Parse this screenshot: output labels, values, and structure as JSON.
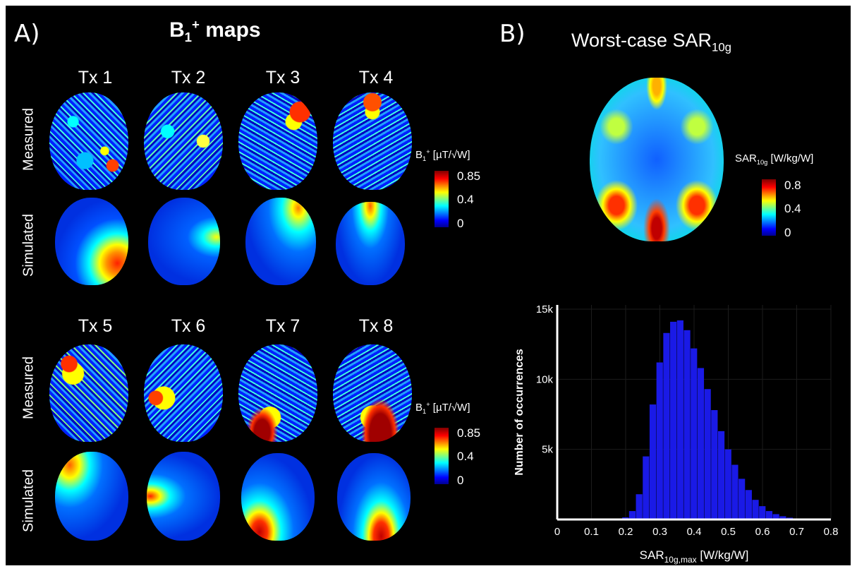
{
  "panel_a": {
    "label": "A)",
    "title_main": "B",
    "title_sub": "1",
    "title_sup": "+",
    "title_rest": " maps",
    "tx_top": [
      "Tx 1",
      "Tx 2",
      "Tx 3",
      "Tx 4"
    ],
    "tx_bottom": [
      "Tx 5",
      "Tx 6",
      "Tx 7",
      "Tx 8"
    ],
    "row_measured": "Measured",
    "row_simulated": "Simulated",
    "colorbar": {
      "title_b": "B",
      "title_sub": "1",
      "title_sup": "+",
      "title_unit": " [µT/√W]",
      "ticks": [
        "0.85",
        "0.4",
        "0"
      ]
    }
  },
  "panel_b": {
    "label": "B)",
    "title_main": "Worst-case SAR",
    "title_sub": "10g",
    "colorbar": {
      "title_main": "SAR",
      "title_sub": "10g",
      "title_unit": " [W/kg/W]",
      "ticks": [
        "0.8",
        "0.4",
        "0"
      ]
    }
  },
  "colors": {
    "background": "#000000",
    "histogram_bar": "#1a1ae6",
    "colormap": [
      "#00008f",
      "#0000ff",
      "#00ffff",
      "#ffff00",
      "#ff0000",
      "#800000"
    ]
  },
  "chart_data": {
    "type": "bar",
    "title": "",
    "xlabel_main": "SAR",
    "xlabel_sub": "10g,max",
    "xlabel_unit": " [W/kg/W]",
    "ylabel": "Number of occurrences",
    "xlim": [
      0,
      0.8
    ],
    "ylim": [
      0,
      15000
    ],
    "xticks": [
      "0",
      "0.1",
      "0.2",
      "0.3",
      "0.4",
      "0.5",
      "0.6",
      "0.7",
      "0.8"
    ],
    "yticks": [
      "5k",
      "10k",
      "15k"
    ],
    "grid": true,
    "bins_x": [
      0.2,
      0.22,
      0.24,
      0.26,
      0.28,
      0.3,
      0.32,
      0.34,
      0.36,
      0.38,
      0.4,
      0.42,
      0.44,
      0.46,
      0.48,
      0.5,
      0.52,
      0.54,
      0.56,
      0.58,
      0.6,
      0.62,
      0.64,
      0.66,
      0.68,
      0.7,
      0.72,
      0.74
    ],
    "bins_y": [
      150,
      600,
      1800,
      4500,
      8200,
      11200,
      13300,
      14100,
      14200,
      13500,
      12200,
      10800,
      9300,
      7800,
      6300,
      5000,
      3900,
      2900,
      2100,
      1400,
      950,
      600,
      380,
      230,
      130,
      70,
      30,
      10
    ]
  }
}
